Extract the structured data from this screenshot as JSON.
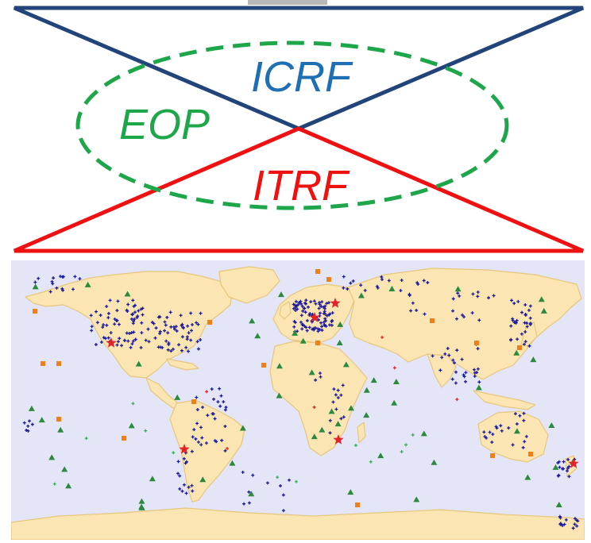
{
  "diagram": {
    "labels": {
      "icrf": "ICRF",
      "eop": "EOP",
      "itrf": "ITRF"
    },
    "colors": {
      "icrf": "#1f6fb5",
      "eop": "#1ea64a",
      "itrf": "#ee1111",
      "upper_triangle": "#22447a",
      "lower_triangle": "#ee1111",
      "ellipse": "#1ea64a"
    }
  },
  "map": {
    "ocean_color": "#e4e6f7",
    "land_color": "#fbe5b3",
    "border_color": "#e8c67c",
    "marker_colors": {
      "vlbi_plus": "#1a1a9e",
      "triangle": "#2b8a3e",
      "square": "#f07f17",
      "star": "#e3222a",
      "small_plus_green": "#2fb457",
      "small_plus_red": "#e3222a"
    }
  }
}
